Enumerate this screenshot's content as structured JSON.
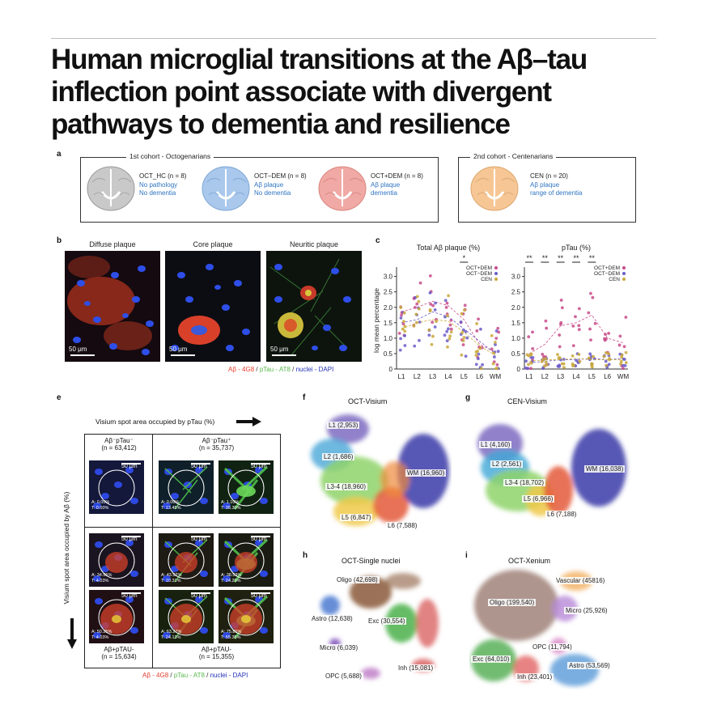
{
  "title_lines": [
    "Human microglial transitions at the Aβ–tau",
    "inflection point associate with divergent",
    "pathways to dementia and resilience"
  ],
  "panel_letters": {
    "a": "a",
    "b": "b",
    "c": "c",
    "e": "e",
    "f": "f",
    "g": "g",
    "h": "h",
    "i": "i"
  },
  "panel_a": {
    "cohort1_label": "1st cohort - Octogenarians",
    "cohort2_label": "2nd cohort - Centenarians",
    "groups": [
      {
        "name": "OCT_HC (n = 8)",
        "line1": "No pathology",
        "line2": "No dementia",
        "color": "#c9c9c9"
      },
      {
        "name": "OCT–DEM (n = 8)",
        "line1": "Aβ plaque",
        "line2": "No dementia",
        "color": "#a9c8ec"
      },
      {
        "name": "OCT+DEM (n = 8)",
        "line1": "Aβ plaque",
        "line2": "dementia",
        "color": "#f0a9a4"
      },
      {
        "name": "CEN (n = 20)",
        "line1": "Aβ plaque",
        "line2": "range of dementia",
        "color": "#f6c795"
      }
    ]
  },
  "panel_b": {
    "titles": [
      "Diffuse plaque",
      "Core plaque",
      "Neuritic plaque"
    ],
    "scale": "50 μm",
    "legend": {
      "a": "Aβ - 4G8",
      "sep1": " / ",
      "b": "pTau - AT8",
      "sep2": " / ",
      "c": "nuclei - DAPI"
    }
  },
  "panel_c": {
    "y_label": "log mean percentage",
    "y_ticks": [
      "0",
      "0.5",
      "1.0",
      "1.5",
      "2.0",
      "2.5",
      "3.0"
    ],
    "x_ticks": [
      "L1",
      "L2",
      "L3",
      "L4",
      "L5",
      "L6",
      "WM"
    ],
    "legend_names": [
      "OCT+DEM",
      "OCT−DEM",
      "CEN"
    ],
    "colors": {
      "oct_pos": "#c84a8a",
      "oct_neg": "#6a5cc8",
      "cen": "#c9a83a"
    },
    "chart_data": [
      {
        "type": "scatter",
        "title": "Total Aβ plaque (%)",
        "ylabel": "log mean percentage",
        "x": [
          "L1",
          "L2",
          "L3",
          "L4",
          "L5",
          "L6",
          "WM"
        ],
        "ylim": [
          0,
          3.2
        ],
        "series": [
          {
            "name": "OCT+DEM",
            "means": [
              1.85,
              2.0,
              2.2,
              2.05,
              1.6,
              0.8,
              0.55
            ]
          },
          {
            "name": "OCT−DEM",
            "means": [
              1.5,
              1.6,
              1.85,
              1.7,
              1.3,
              0.9,
              0.5
            ]
          },
          {
            "name": "CEN",
            "means": [
              1.3,
              1.5,
              1.6,
              1.55,
              1.2,
              0.75,
              0.45
            ]
          }
        ],
        "annotations": [
          {
            "text": "*",
            "x": "L5"
          }
        ]
      },
      {
        "type": "scatter",
        "title": "pTau (%)",
        "x": [
          "L1",
          "L2",
          "L3",
          "L4",
          "L5",
          "L6",
          "WM"
        ],
        "ylim": [
          0,
          3.2
        ],
        "series": [
          {
            "name": "OCT+DEM",
            "means": [
              0.5,
              0.8,
              1.4,
              1.5,
              1.75,
              1.0,
              0.85
            ]
          },
          {
            "name": "OCT−DEM",
            "means": [
              0.2,
              0.25,
              0.3,
              0.3,
              0.35,
              0.3,
              0.35
            ]
          },
          {
            "name": "CEN",
            "means": [
              0.25,
              0.3,
              0.3,
              0.35,
              0.3,
              0.3,
              0.3
            ]
          }
        ],
        "annotations": [
          {
            "text": "**",
            "x": "L1"
          },
          {
            "text": "**",
            "x": "L2"
          },
          {
            "text": "**",
            "x": "L3"
          },
          {
            "text": "**",
            "x": "L4"
          },
          {
            "text": "**",
            "x": "L5"
          }
        ]
      }
    ]
  },
  "panel_e": {
    "arrow_top": "Visium spot area occupied by pTau (%)",
    "arrow_left": "Visium spot area occupied by Aβ (%)",
    "cells": [
      {
        "h1": "Aβ⁻pTau⁻",
        "h2": "(n = 63,412)"
      },
      {
        "h1": "Aβ⁻pTau⁺",
        "h2": "(n = 35,737)"
      },
      {
        "h1": "Aβ+pTAU-",
        "h2": "(n = 15,634)"
      },
      {
        "h1": "Aβ+pTAU-",
        "h2": "(n = 15,355)"
      }
    ],
    "scale": "50 μm",
    "readouts": [
      {
        "a": "A: 0.00%",
        "t": "T: 0.00%"
      },
      {
        "a": "A: 0.00%",
        "t": "T: 13.45%"
      },
      {
        "a": "A: 1.10%",
        "t": "T: 35.30%"
      },
      {
        "a": "A: 34.55%",
        "t": "T: 4.03%"
      },
      {
        "a": "A: 43.52%",
        "t": "T: 10.31%"
      },
      {
        "a": "A: 38.53%",
        "t": "T: 24.29%"
      },
      {
        "a": "A: 50.25%",
        "t": "T: 4.03%"
      },
      {
        "a": "A: 63.27%",
        "t": "T: 24.13%"
      },
      {
        "a": "A: 75.86%",
        "t": "T: 55.35%"
      }
    ],
    "legend": {
      "a": "Aβ - 4G8",
      "sep1": " / ",
      "b": "pTau - AT8",
      "sep2": " / ",
      "c": "nuclei - DAPI"
    }
  },
  "panel_f": {
    "title": "OCT-Visium",
    "labels": [
      "L1 (2,953)",
      "L2 (1,686)",
      "L3-4 (18,960)",
      "L5 (6,847)",
      "L6 (7,588)",
      "WM (16,960)"
    ]
  },
  "panel_g": {
    "title": "CEN-Visium",
    "labels": [
      "L1 (4,160)",
      "L2 (2,561)",
      "L3-4 (18,702)",
      "L5 (6,966)",
      "L6 (7,188)",
      "WM (16,038)"
    ]
  },
  "panel_h": {
    "title": "OCT-Single nuclei",
    "labels": [
      "Oligo (42,698)",
      "Astro (12,638)",
      "Exc (30,554)",
      "Micro (6,039)",
      "Inh (15,081)",
      "OPC (5,688)"
    ]
  },
  "panel_i": {
    "title": "OCT-Xenium",
    "labels": [
      "Vascular (45816)",
      "Oligo (199,540)",
      "Micro (25,926)",
      "OPC (11,794)",
      "Astro (53,569)",
      "Exc (64,010)",
      "Inh (23,401)"
    ]
  }
}
